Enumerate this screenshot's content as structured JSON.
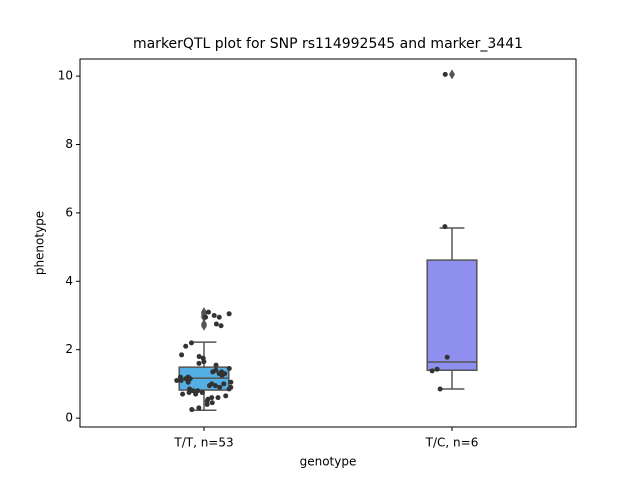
{
  "chart_data": {
    "type": "box",
    "title": "markerQTL plot for SNP rs114992545 and marker_3441",
    "xlabel": "genotype",
    "ylabel": "phenotype",
    "categories": [
      "T/T, n=53",
      "T/C, n=6"
    ],
    "boxes": [
      {
        "whislo": 0.23,
        "q1": 0.82,
        "med": 1.17,
        "q3": 1.49,
        "whishi": 2.22,
        "color": "#54b0e4",
        "fliers": [
          3.1,
          3.05,
          3.0,
          2.95,
          2.75,
          2.7
        ],
        "points": [
          3.05,
          2.95,
          2.95,
          3.0,
          2.75,
          2.7,
          3.1,
          2.1,
          2.2,
          1.75,
          1.8,
          1.85,
          1.65,
          1.6,
          1.55,
          1.45,
          1.4,
          1.35,
          1.35,
          1.3,
          1.3,
          1.25,
          1.2,
          1.2,
          1.15,
          1.15,
          1.1,
          1.1,
          1.05,
          1.05,
          1.0,
          1.0,
          0.95,
          0.95,
          0.9,
          0.9,
          0.85,
          0.85,
          0.8,
          0.8,
          0.75,
          0.75,
          0.7,
          0.7,
          0.65,
          0.6,
          0.6,
          0.55,
          0.5,
          0.45,
          0.4,
          0.3,
          0.25
        ]
      },
      {
        "whislo": 0.85,
        "q1": 1.4,
        "med": 1.64,
        "q3": 4.62,
        "whishi": 5.56,
        "color": "#8f8ff0",
        "fliers": [
          10.05
        ],
        "points": [
          5.6,
          0.85,
          1.43,
          1.38,
          1.78,
          10.05
        ]
      }
    ],
    "ylim": [
      -0.26,
      10.5
    ],
    "yticks": [
      0,
      2,
      4,
      6,
      8,
      10
    ]
  }
}
